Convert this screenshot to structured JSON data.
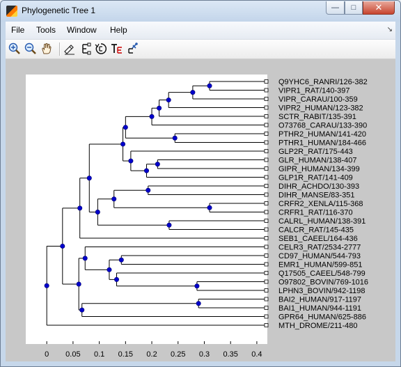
{
  "window": {
    "title": "Phylogenetic Tree 1"
  },
  "window_buttons": {
    "minimize": "—",
    "maximize": "□",
    "close": "✕"
  },
  "menu": [
    {
      "label": "File"
    },
    {
      "label": "Tools"
    },
    {
      "label": "Window"
    },
    {
      "label": "Help"
    }
  ],
  "toolbar_icons": [
    "zoom-in-icon",
    "zoom-out-icon",
    "pan-hand-icon",
    "inspect-tool-icon",
    "collapse-expand-icon",
    "rotate-branch-icon",
    "rename-leaf-icon",
    "prune-icon"
  ],
  "tree": {
    "leaves": [
      "Q9YHC6_RANRI/126-382",
      "VIPR1_RAT/140-397",
      "VIPR_CARAU/100-359",
      "VIPR2_HUMAN/123-382",
      "SCTR_RABIT/135-391",
      "O73768_CARAU/133-390",
      "PTHR2_HUMAN/141-420",
      "PTHR1_HUMAN/184-466",
      "GLP2R_RAT/175-443",
      "GLR_HUMAN/138-407",
      "GIPR_HUMAN/134-399",
      "GLP1R_RAT/141-409",
      "DIHR_ACHDO/130-393",
      "DIHR_MANSE/83-351",
      "CRFR2_XENLA/115-368",
      "CRFR1_RAT/116-370",
      "CALRL_HUMAN/138-391",
      "CALCR_RAT/145-435",
      "SEB1_CAEEL/164-436",
      "CELR3_RAT/2534-2777",
      "CD97_HUMAN/544-793",
      "EMR1_HUMAN/599-851",
      "Q17505_CAEEL/548-799",
      "O97802_BOVIN/769-1016",
      "LPHN3_BOVIN/942-1198",
      "BAI2_HUMAN/917-1197",
      "BAI1_HUMAN/944-1191",
      "GPR64_HUMAN/625-886",
      "MTH_DROME/211-480"
    ],
    "leaf_x": 0.418,
    "nodes": [
      {
        "x": 0.31,
        "children": [
          "L0",
          "L1"
        ]
      },
      {
        "x": 0.278,
        "children": [
          "N0",
          "L2"
        ]
      },
      {
        "x": 0.232,
        "children": [
          "N1",
          "L3"
        ]
      },
      {
        "x": 0.214,
        "children": [
          "N2",
          "L4"
        ]
      },
      {
        "x": 0.2,
        "children": [
          "N3",
          "L5"
        ]
      },
      {
        "x": 0.244,
        "children": [
          "L6",
          "L7"
        ]
      },
      {
        "x": 0.15,
        "children": [
          "N4",
          "N5"
        ]
      },
      {
        "x": 0.211,
        "children": [
          "L9",
          "L10"
        ]
      },
      {
        "x": 0.19,
        "children": [
          "N7",
          "L11"
        ]
      },
      {
        "x": 0.16,
        "children": [
          "L8",
          "N8"
        ]
      },
      {
        "x": 0.145,
        "children": [
          "N6",
          "N9"
        ]
      },
      {
        "x": 0.193,
        "children": [
          "L12",
          "L13"
        ]
      },
      {
        "x": 0.31,
        "children": [
          "L14",
          "L15"
        ]
      },
      {
        "x": 0.128,
        "children": [
          "N11",
          "N12"
        ]
      },
      {
        "x": 0.233,
        "children": [
          "L16",
          "L17"
        ]
      },
      {
        "x": 0.097,
        "children": [
          "N13",
          "N14"
        ]
      },
      {
        "x": 0.081,
        "children": [
          "N10",
          "N15"
        ]
      },
      {
        "x": 0.063,
        "children": [
          "N16",
          "L18"
        ]
      },
      {
        "x": 0.142,
        "children": [
          "L20",
          "L21"
        ]
      },
      {
        "x": 0.286,
        "children": [
          "L23",
          "L24"
        ]
      },
      {
        "x": 0.133,
        "children": [
          "L22",
          "N19"
        ]
      },
      {
        "x": 0.119,
        "children": [
          "N18",
          "N20"
        ]
      },
      {
        "x": 0.073,
        "children": [
          "L19",
          "N21"
        ]
      },
      {
        "x": 0.289,
        "children": [
          "L25",
          "L26"
        ]
      },
      {
        "x": 0.067,
        "children": [
          "N23",
          "L27"
        ]
      },
      {
        "x": 0.061,
        "children": [
          "N22",
          "N24"
        ]
      },
      {
        "x": 0.03,
        "children": [
          "N17",
          "N25"
        ]
      },
      {
        "x": 0.0,
        "children": [
          "N26",
          "L28"
        ]
      }
    ]
  },
  "axis": {
    "xmin": -0.04,
    "xmax": 0.42,
    "ticks": [
      0,
      0.05,
      0.1,
      0.15,
      0.2,
      0.25,
      0.3,
      0.35,
      0.4
    ],
    "tick_labels": [
      "0",
      "0.05",
      "0.1",
      "0.15",
      "0.2",
      "0.25",
      "0.3",
      "0.35",
      "0.4"
    ]
  },
  "colors": {
    "node_fill": "#0000cc",
    "line": "#000000",
    "leaf_fill": "#ffffff"
  }
}
